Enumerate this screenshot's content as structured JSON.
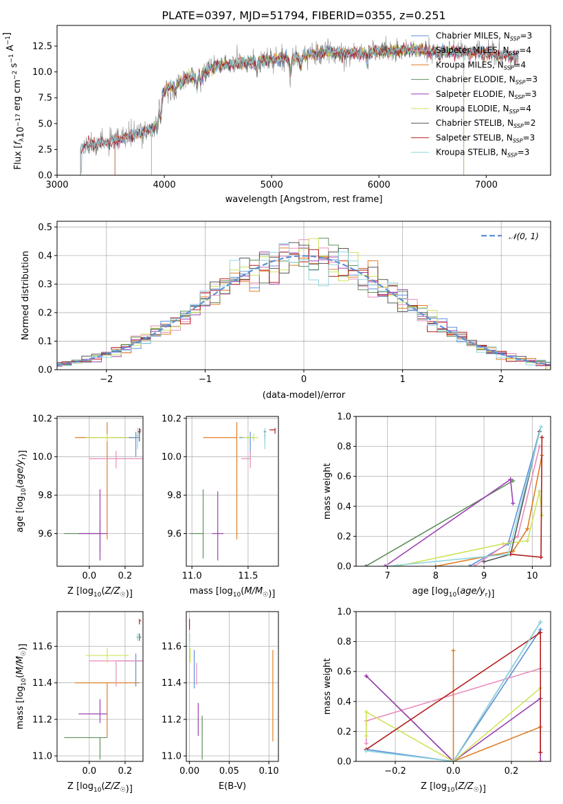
{
  "colors": {
    "Chabrier MILES": "#5b8fd6",
    "Salpeter MILES": "#e98bbb",
    "Kroupa MILES": "#e07b22",
    "Chabrier ELODIE": "#5f8f5c",
    "Salpeter ELODIE": "#9b3fb0",
    "Kroupa ELODIE": "#cde35a",
    "Chabrier STELIB": "#555555",
    "Salpeter STELIB": "#b21b1b",
    "Kroupa STELIB": "#8fd6e0",
    "data": "#7f7f7f",
    "normal": "#5b8fd6"
  },
  "chart_data": [
    {
      "type": "line",
      "title": "PLATE=0397, MJD=51794, FIBERID=0355, z=0.251",
      "xlabel": "wavelength [Angstrom, rest frame]",
      "ylabel": "Flux [f_λ 10^-17 erg cm^-2 s^-1 A^-1]",
      "xlim": [
        3000,
        7600
      ],
      "ylim": [
        0,
        14.5
      ],
      "xticks": [
        "3000",
        "4000",
        "5000",
        "6000",
        "7000"
      ],
      "yticks": [
        "0.0",
        "2.5",
        "5.0",
        "7.5",
        "10.0",
        "12.5"
      ],
      "legend_position": "top-right",
      "legend": [
        {
          "name": "Chabrier MILES",
          "nssp": "3"
        },
        {
          "name": "Salpeter MILES",
          "nssp": "4"
        },
        {
          "name": "Kroupa MILES",
          "nssp": "4"
        },
        {
          "name": "Chabrier ELODIE",
          "nssp": "3"
        },
        {
          "name": "Salpeter ELODIE",
          "nssp": "3"
        },
        {
          "name": "Kroupa ELODIE",
          "nssp": "4"
        },
        {
          "name": "Chabrier STELIB",
          "nssp": "2"
        },
        {
          "name": "Salpeter STELIB",
          "nssp": "3"
        },
        {
          "name": "Kroupa STELIB",
          "nssp": "3"
        }
      ],
      "spectrum_envelope": {
        "x": [
          3220,
          3300,
          3500,
          3700,
          3900,
          4000,
          4100,
          4300,
          4500,
          4800,
          5000,
          5200,
          5500,
          5800,
          6000,
          6300,
          6600,
          7000,
          7300
        ],
        "y": [
          2.6,
          3.0,
          3.2,
          3.8,
          4.6,
          8.2,
          8.8,
          9.7,
          10.6,
          11.0,
          11.2,
          11.4,
          11.9,
          11.8,
          12.0,
          12.1,
          12.0,
          11.8,
          11.3
        ]
      }
    },
    {
      "type": "step",
      "xlabel": "(data-model)/error",
      "ylabel": "Normed distribution",
      "xlim": [
        -2.5,
        2.5
      ],
      "ylim": [
        0,
        0.52
      ],
      "xticks": [
        "−2",
        "−1",
        "0",
        "1",
        "2"
      ],
      "yticks": [
        "0.0",
        "0.1",
        "0.2",
        "0.3",
        "0.4",
        "0.5"
      ],
      "legend": "𝒩(0, 1)",
      "legend_position": "top-right",
      "bin_width": 0.1
    },
    {
      "type": "errorbar",
      "xlabel": "Z [log10(Z/Z☉)]",
      "ylabel": "age  [log10(age/yr)]",
      "xlim": [
        -0.18,
        0.3
      ],
      "ylim": [
        9.43,
        10.21
      ],
      "xticks": [
        "0.0",
        "0.2"
      ],
      "yticks": [
        "9.6",
        "9.8",
        "10.0",
        "10.2"
      ],
      "points": [
        {
          "series": "Kroupa MILES",
          "x": 0.1,
          "xerr": [
            0.18,
            0.18
          ],
          "y": 10.1,
          "yerr": [
            0.53,
            0.08
          ]
        },
        {
          "series": "Chabrier MILES",
          "x": 0.26,
          "xerr": [
            0.1,
            0.01
          ],
          "y": 10.1,
          "yerr": [
            0.1,
            0.03
          ]
        },
        {
          "series": "Salpeter MILES",
          "x": 0.15,
          "xerr": [
            0.15,
            0.15
          ],
          "y": 9.99,
          "yerr": [
            0.05,
            0.04
          ]
        },
        {
          "series": "Chabrier ELODIE",
          "x": 0.06,
          "xerr": [
            0.2,
            0.0
          ],
          "y": 9.6,
          "yerr": [
            0.1,
            0.07
          ]
        },
        {
          "series": "Salpeter ELODIE",
          "x": 0.06,
          "xerr": [
            0.12,
            0.04
          ],
          "y": 9.6,
          "yerr": [
            0.14,
            0.23
          ]
        },
        {
          "series": "Kroupa ELODIE",
          "x": 0.1,
          "xerr": [
            0.12,
            0.12
          ],
          "y": 10.1,
          "yerr": [
            0.02,
            0.02
          ]
        },
        {
          "series": "Chabrier STELIB",
          "x": 0.28,
          "xerr": [
            0.01,
            0.01
          ],
          "y": 10.13,
          "yerr": [
            0.05,
            0.01
          ]
        },
        {
          "series": "Salpeter STELIB",
          "x": 0.28,
          "xerr": [
            0.0,
            0.01
          ],
          "y": 10.14,
          "yerr": [
            0.02,
            0.01
          ]
        },
        {
          "series": "Kroupa STELIB",
          "x": 0.27,
          "xerr": [
            0.01,
            0.01
          ],
          "y": 10.11,
          "yerr": [
            0.07,
            0.04
          ]
        }
      ]
    },
    {
      "type": "errorbar",
      "xlabel": "mass [log10(M/M☉)]",
      "ylabel": "",
      "xlim": [
        10.95,
        11.77
      ],
      "ylim": [
        9.43,
        10.21
      ],
      "xticks": [
        "11.0",
        "11.5"
      ],
      "yticks": [
        "9.6",
        "9.8",
        "10.0",
        "10.2"
      ],
      "points": [
        {
          "series": "Kroupa MILES",
          "x": 11.4,
          "xerr": [
            0.3,
            0.0
          ],
          "y": 10.1,
          "yerr": [
            0.53,
            0.08
          ]
        },
        {
          "series": "Chabrier MILES",
          "x": 11.52,
          "xerr": [
            0.1,
            0.04
          ],
          "y": 10.1,
          "yerr": [
            0.1,
            0.03
          ]
        },
        {
          "series": "Salpeter MILES",
          "x": 11.52,
          "xerr": [
            0.08,
            0.0
          ],
          "y": 9.99,
          "yerr": [
            0.05,
            0.04
          ]
        },
        {
          "series": "Chabrier ELODIE",
          "x": 11.1,
          "xerr": [
            0.12,
            0.0
          ],
          "y": 9.6,
          "yerr": [
            0.13,
            0.23
          ]
        },
        {
          "series": "Salpeter ELODIE",
          "x": 11.23,
          "xerr": [
            0.05,
            0.05
          ],
          "y": 9.6,
          "yerr": [
            0.14,
            0.22
          ]
        },
        {
          "series": "Kroupa ELODIE",
          "x": 11.55,
          "xerr": [
            0.1,
            0.04
          ],
          "y": 10.1,
          "yerr": [
            0.02,
            0.02
          ]
        },
        {
          "series": "Chabrier STELIB",
          "x": 11.65,
          "xerr": [
            0.01,
            0.01
          ],
          "y": 10.13,
          "yerr": [
            0.05,
            0.01
          ]
        },
        {
          "series": "Salpeter STELIB",
          "x": 11.74,
          "xerr": [
            0.05,
            0.0
          ],
          "y": 10.14,
          "yerr": [
            0.02,
            0.01
          ]
        },
        {
          "series": "Kroupa STELIB",
          "x": 11.65,
          "xerr": [
            0.01,
            0.01
          ],
          "y": 10.11,
          "yerr": [
            0.07,
            0.04
          ]
        }
      ]
    },
    {
      "type": "line",
      "xlabel": "age  [log10(age/yr)]",
      "ylabel": "mass weight",
      "xlim": [
        6.35,
        10.38
      ],
      "ylim": [
        0,
        1.0
      ],
      "xticks": [
        "7",
        "8",
        "9",
        "10"
      ],
      "yticks": [
        "0.0",
        "0.2",
        "0.4",
        "0.6",
        "0.8",
        "1.0"
      ],
      "series": [
        {
          "name": "Chabrier MILES",
          "x": [
            8.7,
            9.5,
            10.15
          ],
          "y": [
            0.0,
            0.15,
            0.9
          ]
        },
        {
          "name": "Salpeter MILES",
          "x": [
            8.8,
            9.7,
            10.15
          ],
          "y": [
            0.0,
            0.2,
            0.8
          ]
        },
        {
          "name": "Kroupa MILES",
          "x": [
            8.0,
            9.6,
            9.9,
            10.2
          ],
          "y": [
            0.0,
            0.1,
            0.25,
            0.74
          ]
        },
        {
          "name": "Chabrier ELODIE",
          "x": [
            6.55,
            9.6
          ],
          "y": [
            0.0,
            0.57
          ]
        },
        {
          "name": "Salpeter ELODIE",
          "x": [
            6.95,
            9.55,
            9.6
          ],
          "y": [
            0.0,
            0.58,
            0.42
          ]
        },
        {
          "name": "Kroupa ELODIE",
          "x": [
            7.2,
            9.4,
            9.9,
            10.15,
            10.2
          ],
          "y": [
            0.0,
            0.15,
            0.17,
            0.5,
            0.34
          ]
        },
        {
          "name": "Chabrier STELIB",
          "x": [
            9.0,
            9.55,
            10.15
          ],
          "y": [
            0.03,
            0.08,
            0.9
          ]
        },
        {
          "name": "Salpeter STELIB",
          "x": [
            9.55,
            10.18,
            10.2
          ],
          "y": [
            0.08,
            0.06,
            0.86
          ]
        },
        {
          "name": "Kroupa STELIB",
          "x": [
            7.0,
            9.5,
            10.18
          ],
          "y": [
            0.0,
            0.08,
            0.93
          ]
        }
      ]
    },
    {
      "type": "errorbar",
      "xlabel": "Z [log10(Z/Z☉)]",
      "ylabel": "mass [log10(M/M☉)]",
      "xlim": [
        -0.18,
        0.3
      ],
      "ylim": [
        10.97,
        11.79
      ],
      "xticks": [
        "0.0",
        "0.2"
      ],
      "yticks": [
        "11.0",
        "11.2",
        "11.4",
        "11.6"
      ],
      "points": [
        {
          "series": "Kroupa MILES",
          "x": 0.1,
          "xerr": [
            0.18,
            0.18
          ],
          "y": 11.4,
          "yerr": [
            0.3,
            0.0
          ]
        },
        {
          "series": "Chabrier MILES",
          "x": 0.26,
          "xerr": [
            0.1,
            0.04
          ],
          "y": 11.52,
          "yerr": [
            0.14,
            0.04
          ]
        },
        {
          "series": "Salpeter MILES",
          "x": 0.15,
          "xerr": [
            0.15,
            0.15
          ],
          "y": 11.52,
          "yerr": [
            0.14,
            0.0
          ]
        },
        {
          "series": "Chabrier ELODIE",
          "x": 0.06,
          "xerr": [
            0.2,
            0.04
          ],
          "y": 11.1,
          "yerr": [
            0.12,
            0.0
          ]
        },
        {
          "series": "Salpeter ELODIE",
          "x": 0.06,
          "xerr": [
            0.12,
            0.04
          ],
          "y": 11.23,
          "yerr": [
            0.05,
            0.08
          ]
        },
        {
          "series": "Kroupa ELODIE",
          "x": 0.1,
          "xerr": [
            0.12,
            0.12
          ],
          "y": 11.55,
          "yerr": [
            0.04,
            0.04
          ]
        },
        {
          "series": "Chabrier STELIB",
          "x": 0.28,
          "xerr": [
            0.01,
            0.01
          ],
          "y": 11.65,
          "yerr": [
            0.02,
            0.02
          ]
        },
        {
          "series": "Salpeter STELIB",
          "x": 0.28,
          "xerr": [
            0.0,
            0.01
          ],
          "y": 11.74,
          "yerr": [
            0.02,
            0.01
          ]
        },
        {
          "series": "Kroupa STELIB",
          "x": 0.27,
          "xerr": [
            0.01,
            0.01
          ],
          "y": 11.65,
          "yerr": [
            0.02,
            0.02
          ]
        }
      ]
    },
    {
      "type": "errorbar",
      "xlabel": "E(B-V)",
      "ylabel": "",
      "xlim": [
        -0.004,
        0.112
      ],
      "ylim": [
        10.97,
        11.79
      ],
      "xticks": [
        "0.00",
        "0.05",
        "0.10"
      ],
      "yticks": [
        "11.0",
        "11.2",
        "11.4",
        "11.6"
      ],
      "points": [
        {
          "series": "Kroupa MILES",
          "x": 0.105,
          "y": 11.33,
          "yerr": [
            0.25,
            0.25
          ]
        },
        {
          "series": "Chabrier MILES",
          "x": 0.006,
          "y": 11.5,
          "yerr": [
            0.13,
            0.08
          ]
        },
        {
          "series": "Salpeter MILES",
          "x": 0.009,
          "y": 11.45,
          "yerr": [
            0.06,
            0.06
          ]
        },
        {
          "series": "Chabrier ELODIE",
          "x": 0.016,
          "y": 11.1,
          "yerr": [
            0.12,
            0.12
          ]
        },
        {
          "series": "Salpeter ELODIE",
          "x": 0.011,
          "y": 11.2,
          "yerr": [
            0.09,
            0.09
          ]
        },
        {
          "series": "Kroupa ELODIE",
          "x": 0.001,
          "y": 11.55,
          "yerr": [
            0.04,
            0.04
          ]
        },
        {
          "series": "Chabrier STELIB",
          "x": 0.0,
          "y": 11.65,
          "yerr": [
            0.02,
            0.02
          ]
        },
        {
          "series": "Salpeter STELIB",
          "x": 0.0,
          "y": 11.72,
          "yerr": [
            0.03,
            0.03
          ]
        },
        {
          "series": "Kroupa STELIB",
          "x": 0.0,
          "y": 11.6,
          "yerr": [
            0.07,
            0.07
          ]
        }
      ]
    },
    {
      "type": "line",
      "xlabel": "Z [log10(Z/Z☉)]",
      "ylabel": "mass weight",
      "xlim": [
        -0.335,
        0.335
      ],
      "ylim": [
        0,
        1.0
      ],
      "xticks": [
        "−0.2",
        "0.0",
        "0.2"
      ],
      "yticks": [
        "0.0",
        "0.2",
        "0.4",
        "0.6",
        "0.8",
        "1.0"
      ],
      "series": [
        {
          "name": "Chabrier MILES",
          "x": [
            -0.3,
            0.0,
            0.3
          ],
          "y": [
            0.08,
            0.0,
            0.88
          ]
        },
        {
          "name": "Salpeter MILES",
          "x": [
            -0.3,
            -0.3,
            0.3
          ],
          "y": [
            0.12,
            0.27,
            0.62
          ]
        },
        {
          "name": "Kroupa MILES",
          "x": [
            0.0,
            0.0,
            0.3,
            0.3
          ],
          "y": [
            0.74,
            0.0,
            0.23,
            0.0
          ]
        },
        {
          "name": "Chabrier ELODIE",
          "x": [
            -0.3,
            0.0
          ],
          "y": [
            0.57,
            0.0
          ]
        },
        {
          "name": "Salpeter ELODIE",
          "x": [
            -0.3,
            0.0,
            0.3,
            0.3
          ],
          "y": [
            0.57,
            0.0,
            0.42,
            0.0
          ]
        },
        {
          "name": "Kroupa ELODIE",
          "x": [
            -0.3,
            -0.3,
            0.0,
            0.3
          ],
          "y": [
            0.17,
            0.33,
            0.0,
            0.49
          ]
        },
        {
          "name": "Chabrier STELIB",
          "x": [
            0.0,
            0.3
          ],
          "y": [
            0.0,
            0.93
          ]
        },
        {
          "name": "Salpeter STELIB",
          "x": [
            -0.3,
            0.3,
            0.3
          ],
          "y": [
            0.08,
            0.86,
            0.06
          ]
        },
        {
          "name": "Kroupa STELIB",
          "x": [
            -0.3,
            0.0,
            0.3
          ],
          "y": [
            0.07,
            0.0,
            0.93
          ]
        }
      ]
    }
  ]
}
